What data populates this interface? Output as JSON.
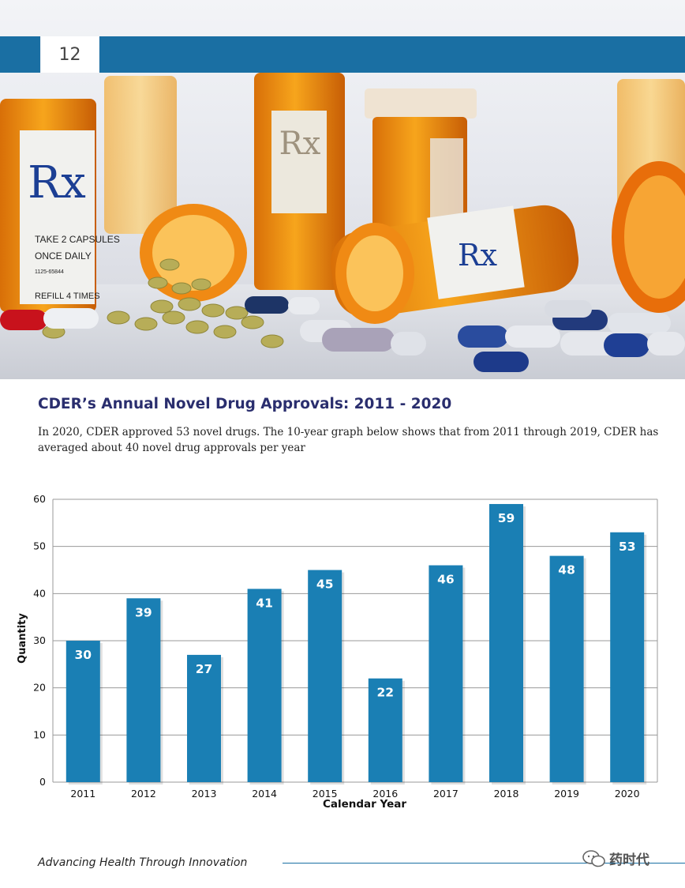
{
  "header": {
    "page_number": "12"
  },
  "hero": {
    "bottle_label_1": "Rx",
    "bottle_label_2": "Rx",
    "bottle_label_3": "Rx",
    "label_line_1": "TAKE 2 CAPSULES",
    "label_line_2": "ONCE DAILY",
    "label_line_3": "1125-65844",
    "label_line_4": "REFILL 4 TIMES"
  },
  "section": {
    "title": "CDER’s Annual Novel Drug Approvals: 2011 - 2020",
    "intro": "In 2020, CDER approved 53 novel drugs. The 10-year graph below shows that from 2011 through 2019, CDER has averaged about 40 novel drug approvals per year"
  },
  "colors": {
    "bar": "#1a7fb4",
    "band": "#1a6fa3",
    "title": "#2a2e6e"
  },
  "chart_data": {
    "type": "bar",
    "categories": [
      "2011",
      "2012",
      "2013",
      "2014",
      "2015",
      "2016",
      "2017",
      "2018",
      "2019",
      "2020"
    ],
    "values": [
      30,
      39,
      27,
      41,
      45,
      22,
      46,
      59,
      48,
      53
    ],
    "xlabel": "Calendar Year",
    "ylabel": "Quantity",
    "ylim": [
      0,
      60
    ],
    "yticks": [
      0,
      10,
      20,
      30,
      40,
      50,
      60
    ],
    "grid": true,
    "data_labels": true
  },
  "footer": {
    "tagline": "Advancing Health Through Innovation",
    "watermark": "药时代"
  }
}
